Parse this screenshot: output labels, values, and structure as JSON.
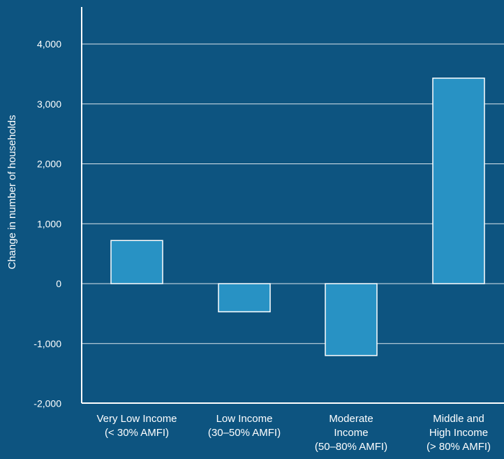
{
  "chart_data": {
    "type": "bar",
    "ylabel": "Change in number of households",
    "xlabel": "",
    "ylim": [
      -2000,
      4000
    ],
    "yticks": [
      -2000,
      -1000,
      0,
      1000,
      2000,
      3000,
      4000
    ],
    "ytick_labels": [
      "-2,000",
      "-1,000",
      "0",
      "1,000",
      "2,000",
      "3,000",
      "4,000"
    ],
    "categories": [
      [
        "Very Low Income",
        "(< 30% AMFI)"
      ],
      [
        "Low Income",
        "(30–50% AMFI)"
      ],
      [
        "Moderate",
        "Income",
        "(50–80% AMFI)"
      ],
      [
        "Middle and",
        "High Income",
        "(> 80% AMFI)"
      ]
    ],
    "values": [
      720,
      -470,
      -1200,
      3430
    ],
    "grid": true,
    "colors": {
      "background": "#0d5480",
      "bar_fill": "#2892c4",
      "bar_stroke": "#ffffff",
      "axis": "#ffffff",
      "grid": "#ffffff"
    }
  }
}
